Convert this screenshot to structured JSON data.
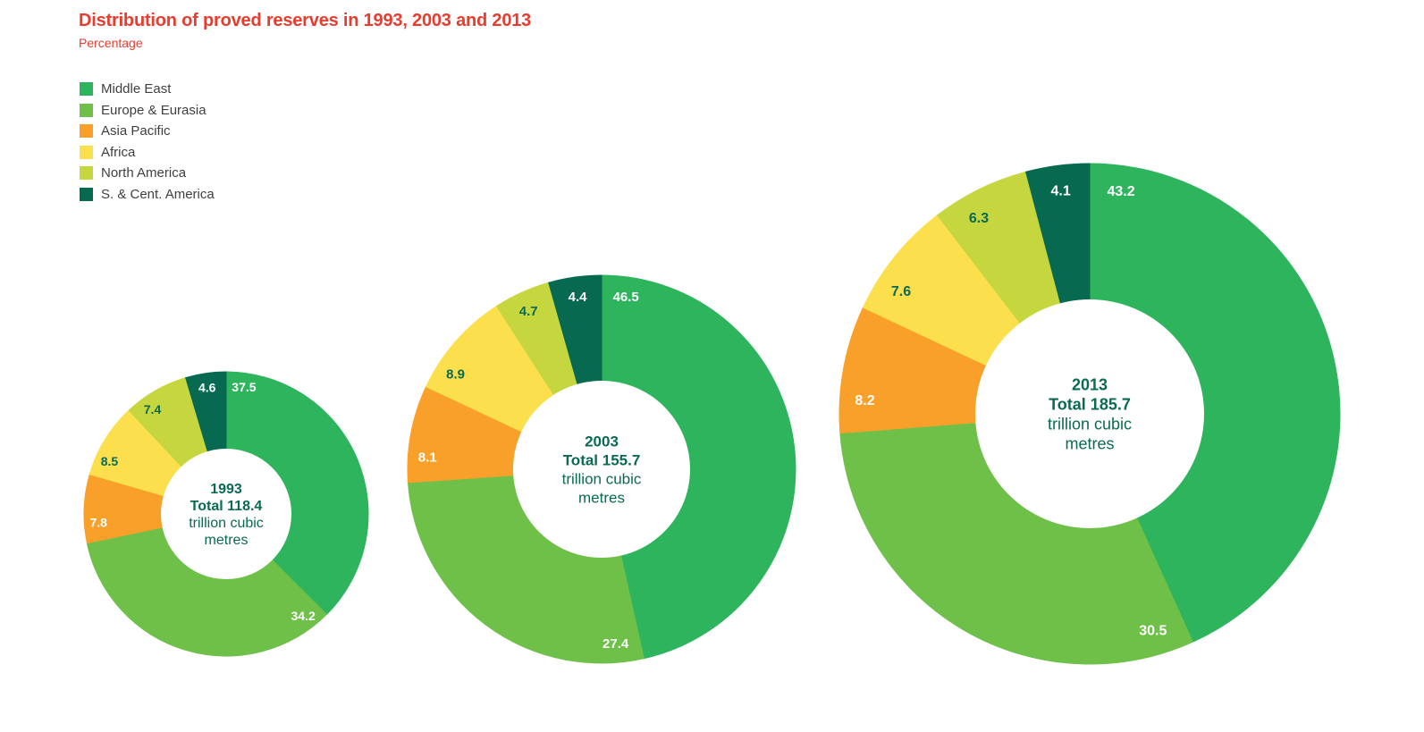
{
  "title": "Distribution of proved reserves in 1993, 2003 and 2013",
  "subtitle": "Percentage",
  "colors": {
    "title_text": "#e73c2e",
    "center_text": "#0a6a53",
    "label_light": "#ffffff",
    "label_dark": "#0a6a53",
    "legend_text": "#3f3f42",
    "background": "#ffffff"
  },
  "chart_data": {
    "type": "pie",
    "subtype": "donut",
    "title": "Distribution of proved reserves in 1993, 2003 and 2013",
    "unit": "trillion cubic metres",
    "unit_lines": [
      "trillion cubic",
      "metres"
    ],
    "series_names": [
      "Middle East",
      "Europe & Eurasia",
      "Asia Pacific",
      "Africa",
      "North America",
      "S. & Cent. America"
    ],
    "series_colors": [
      "#2eb45d",
      "#6ec049",
      "#f9a02b",
      "#fbdf4d",
      "#c6d63e",
      "#076a50"
    ],
    "charts": [
      {
        "year": "1993",
        "total": 118.4,
        "total_label": "Total 118.4",
        "values": [
          37.5,
          34.2,
          7.8,
          8.5,
          7.4,
          4.6
        ]
      },
      {
        "year": "2003",
        "total": 155.7,
        "total_label": "Total 155.7",
        "values": [
          46.5,
          27.4,
          8.1,
          8.9,
          4.7,
          4.4
        ]
      },
      {
        "year": "2013",
        "total": 185.7,
        "total_label": "Total 185.7",
        "values": [
          43.2,
          30.5,
          8.2,
          7.6,
          6.3,
          4.1
        ]
      }
    ],
    "layout_hints": {
      "start_angle_deg": 0,
      "direction": "clockwise",
      "legend_position": "top-left",
      "value_labels": "inside slices near start angle, one decimal",
      "dark_label_series": [
        3,
        4
      ],
      "donut_hole_ratio": 0.46
    }
  }
}
